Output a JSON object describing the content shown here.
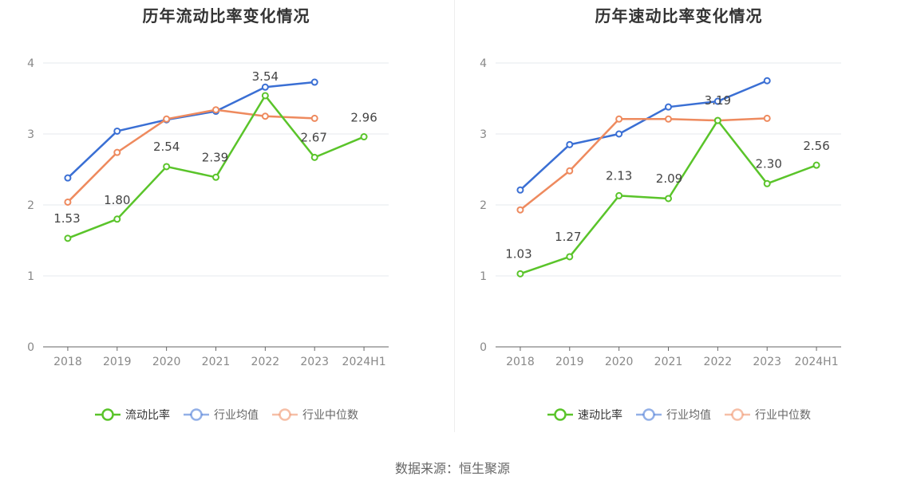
{
  "source_text": "数据来源：恒生聚源",
  "chart_data": [
    {
      "type": "line",
      "title": "历年流动比率变化情况",
      "categories": [
        "2018",
        "2019",
        "2020",
        "2021",
        "2022",
        "2023",
        "2024H1"
      ],
      "ylim": [
        0,
        4
      ],
      "yticks": [
        0,
        1,
        2,
        3,
        4
      ],
      "grid": true,
      "legend_position": "bottom",
      "series": [
        {
          "name": "流动比率",
          "color": "#5ac42a",
          "values": [
            1.53,
            1.8,
            2.54,
            2.39,
            3.54,
            2.67,
            2.96
          ],
          "labels": [
            "1.53",
            "1.80",
            "2.54",
            "2.39",
            "3.54",
            "2.67",
            "2.96"
          ]
        },
        {
          "name": "行业均值",
          "color": "#3a6fd4",
          "values": [
            2.38,
            3.04,
            3.2,
            3.32,
            3.66,
            3.73,
            null
          ]
        },
        {
          "name": "行业中位数",
          "color": "#ee8a5e",
          "values": [
            2.04,
            2.74,
            3.21,
            3.34,
            3.25,
            3.22,
            null
          ]
        }
      ]
    },
    {
      "type": "line",
      "title": "历年速动比率变化情况",
      "categories": [
        "2018",
        "2019",
        "2020",
        "2021",
        "2022",
        "2023",
        "2024H1"
      ],
      "ylim": [
        0,
        4
      ],
      "yticks": [
        0,
        1,
        2,
        3,
        4
      ],
      "grid": true,
      "legend_position": "bottom",
      "series": [
        {
          "name": "速动比率",
          "color": "#5ac42a",
          "values": [
            1.03,
            1.27,
            2.13,
            2.09,
            3.19,
            2.3,
            2.56
          ],
          "labels": [
            "1.03",
            "1.27",
            "2.13",
            "2.09",
            "3.19",
            "2.30",
            "2.56"
          ]
        },
        {
          "name": "行业均值",
          "color": "#3a6fd4",
          "values": [
            2.21,
            2.85,
            3.0,
            3.38,
            3.46,
            3.75,
            null
          ]
        },
        {
          "name": "行业中位数",
          "color": "#ee8a5e",
          "values": [
            1.93,
            2.48,
            3.21,
            3.21,
            3.19,
            3.22,
            null
          ]
        }
      ]
    }
  ]
}
